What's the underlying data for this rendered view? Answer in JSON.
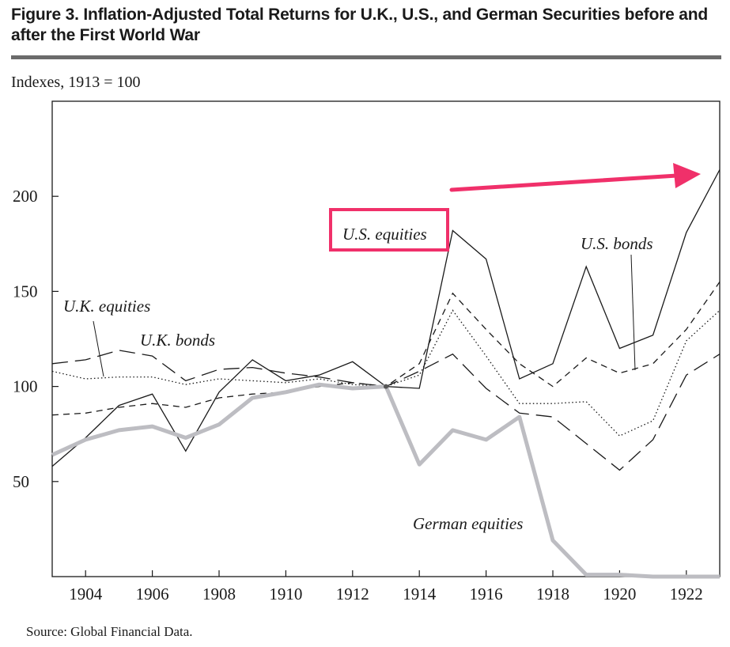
{
  "title": {
    "figure_label": "Figure 3.",
    "text": "Inflation-Adjusted Total Returns for U.K., U.S., and German Securities before and after the First World War"
  },
  "units_label": "Indexes, 1913 = 100",
  "source": "Source: Global Financial Data.",
  "colors": {
    "highlight": "#f0306a",
    "german": "#bdbdc2",
    "line": "#1a1a1a"
  },
  "chart_data": {
    "type": "line",
    "x": [
      1903,
      1904,
      1905,
      1906,
      1907,
      1908,
      1909,
      1910,
      1911,
      1912,
      1913,
      1914,
      1915,
      1916,
      1917,
      1918,
      1919,
      1920,
      1921,
      1922,
      1923
    ],
    "xlim": [
      1903,
      1923
    ],
    "ylim": [
      0,
      250
    ],
    "xticks": [
      1904,
      1906,
      1908,
      1910,
      1912,
      1914,
      1916,
      1918,
      1920,
      1922
    ],
    "yticks": [
      50,
      100,
      150,
      200
    ],
    "series": [
      {
        "name": "U.S. equities",
        "style": "solid",
        "values": [
          58,
          73,
          90,
          96,
          66,
          97,
          114,
          103,
          106,
          113,
          100,
          99,
          182,
          167,
          104,
          112,
          163,
          120,
          127,
          181,
          214
        ]
      },
      {
        "name": "U.S. bonds",
        "style": "short-dash",
        "values": [
          85,
          86,
          89,
          91,
          89,
          94,
          96,
          97,
          100,
          102,
          100,
          112,
          149,
          130,
          112,
          100,
          115,
          107,
          112,
          130,
          155
        ]
      },
      {
        "name": "U.K. equities",
        "style": "dotted",
        "values": [
          108,
          104,
          105,
          105,
          101,
          104,
          103,
          102,
          104,
          101,
          100,
          106,
          140,
          116,
          91,
          91,
          92,
          74,
          82,
          124,
          140
        ]
      },
      {
        "name": "U.K. bonds",
        "style": "long-dash",
        "values": [
          112,
          114,
          119,
          116,
          103,
          109,
          110,
          107,
          105,
          102,
          100,
          108,
          117,
          99,
          86,
          84,
          70,
          56,
          72,
          106,
          117
        ]
      },
      {
        "name": "German equities",
        "style": "thick-gray",
        "values": [
          64,
          72,
          77,
          79,
          73,
          80,
          94,
          97,
          101,
          99,
          100,
          59,
          77,
          72,
          84,
          19,
          1,
          1,
          0,
          0,
          0
        ]
      }
    ],
    "annotations": {
      "us_equities": "U.S. equities",
      "us_bonds": "U.S. bonds",
      "uk_equities": "U.K. equities",
      "uk_bonds": "U.K. bonds",
      "german_equities": "German equities"
    },
    "highlighted_series": "U.S. equities",
    "arrow": "rising trend (pink arrow toward the upper right)"
  }
}
